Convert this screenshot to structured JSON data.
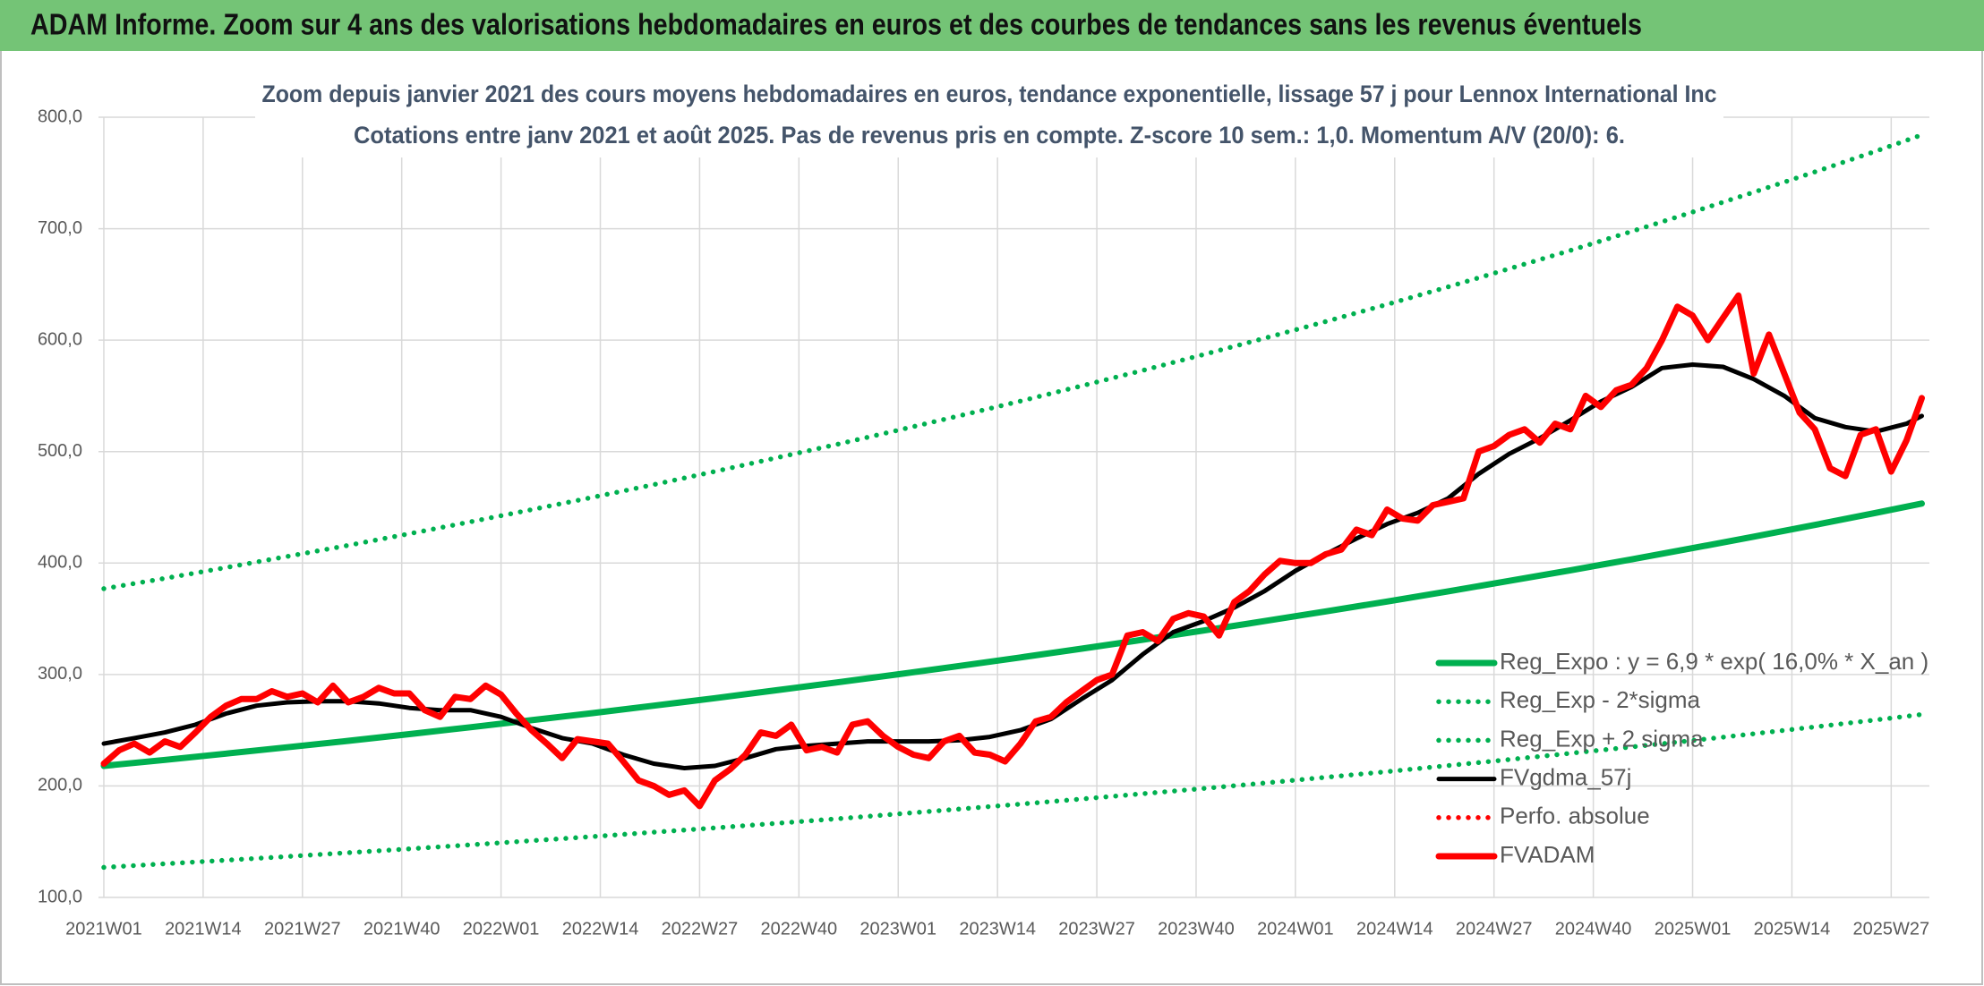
{
  "banner": "ADAM Informe. Zoom sur 4 ans des valorisations hebdomadaires en euros et des courbes de tendances sans les revenus éventuels",
  "chart_data": {
    "type": "line",
    "title": "Zoom depuis janvier 2021 des cours moyens hebdomadaires en euros, tendance exponentielle, lissage 57 j pour Lennox International Inc",
    "subtitle": "Cotations entre janv 2021 et août 2025. Pas de revenus pris en compte. Z-score 10 sem.: 1,0. Momentum A/V (20/0): 6.",
    "xlim": [
      -0.7,
      239
    ],
    "xticks": [
      {
        "value": 0,
        "label": "2021W01"
      },
      {
        "value": 13,
        "label": "2021W14"
      },
      {
        "value": 26,
        "label": "2021W27"
      },
      {
        "value": 39,
        "label": "2021W40"
      },
      {
        "value": 52,
        "label": "2022W01"
      },
      {
        "value": 65,
        "label": "2022W14"
      },
      {
        "value": 78,
        "label": "2022W27"
      },
      {
        "value": 91,
        "label": "2022W40"
      },
      {
        "value": 104,
        "label": "2023W01"
      },
      {
        "value": 117,
        "label": "2023W14"
      },
      {
        "value": 130,
        "label": "2023W27"
      },
      {
        "value": 143,
        "label": "2023W40"
      },
      {
        "value": 156,
        "label": "2024W01"
      },
      {
        "value": 169,
        "label": "2024W14"
      },
      {
        "value": 182,
        "label": "2024W27"
      },
      {
        "value": 195,
        "label": "2024W40"
      },
      {
        "value": 208,
        "label": "2025W01"
      },
      {
        "value": 221,
        "label": "2025W14"
      },
      {
        "value": 234,
        "label": "2025W27"
      }
    ],
    "ylim": [
      100,
      800
    ],
    "yticks": [
      {
        "value": 100,
        "label": "100,0"
      },
      {
        "value": 200,
        "label": "200,0"
      },
      {
        "value": 300,
        "label": "300,0"
      },
      {
        "value": 400,
        "label": "400,0"
      },
      {
        "value": 500,
        "label": "500,0"
      },
      {
        "value": 600,
        "label": "600,0"
      },
      {
        "value": 700,
        "label": "700,0"
      },
      {
        "value": 800,
        "label": "800,0"
      }
    ],
    "grid": true,
    "legend": "lower-right",
    "series": [
      {
        "name": "Reg_Expo : y = 6,9 * exp( 16,0% *  X_an )",
        "color": "#00b050",
        "style": "solid",
        "x": [
          0,
          8,
          16,
          24,
          32,
          40,
          48,
          56,
          64,
          72,
          80,
          88,
          96,
          104,
          112,
          120,
          128,
          136,
          144,
          152,
          160,
          168,
          176,
          184,
          192,
          200,
          208,
          216,
          224,
          232,
          238
        ],
        "values": [
          218.0,
          223.4,
          229.0,
          234.7,
          240.5,
          246.5,
          252.7,
          259.0,
          265.4,
          272.0,
          278.8,
          285.8,
          292.9,
          300.2,
          307.7,
          315.3,
          323.2,
          331.2,
          339.5,
          348.0,
          356.6,
          365.5,
          374.6,
          384.0,
          393.5,
          403.3,
          413.4,
          423.7,
          434.2,
          445.0,
          453.4
        ]
      },
      {
        "name": "Reg_Exp - 2*sigma",
        "color": "#00b050",
        "style": "dotted",
        "x": [
          0,
          8,
          16,
          24,
          32,
          40,
          48,
          56,
          64,
          72,
          80,
          88,
          96,
          104,
          112,
          120,
          128,
          136,
          144,
          152,
          160,
          168,
          176,
          184,
          192,
          200,
          208,
          216,
          224,
          232,
          238
        ],
        "values": [
          127.0,
          130.2,
          133.4,
          136.7,
          140.1,
          143.6,
          147.2,
          150.9,
          154.6,
          158.5,
          162.4,
          166.5,
          170.6,
          174.9,
          179.3,
          183.7,
          188.3,
          193.0,
          197.8,
          202.7,
          207.8,
          212.9,
          218.3,
          223.7,
          229.3,
          235.0,
          240.8,
          246.8,
          253.0,
          259.3,
          264.2
        ]
      },
      {
        "name": "Reg_Exp + 2 sigma",
        "color": "#00b050",
        "style": "dotted",
        "x": [
          0,
          8,
          16,
          24,
          32,
          40,
          48,
          56,
          64,
          72,
          80,
          88,
          96,
          104,
          112,
          120,
          128,
          136,
          144,
          152,
          160,
          168,
          176,
          184,
          192,
          200,
          208,
          216,
          224,
          232,
          238
        ],
        "values": [
          377.0,
          386.3,
          396.0,
          405.9,
          415.9,
          426.3,
          437.0,
          447.9,
          459.0,
          470.4,
          482.2,
          494.3,
          506.5,
          519.2,
          532.1,
          545.3,
          558.9,
          572.8,
          587.1,
          601.8,
          616.7,
          632.1,
          647.8,
          664.1,
          680.5,
          697.5,
          714.9,
          732.7,
          750.9,
          769.6,
          784.1
        ]
      },
      {
        "name": "FVgdma_57j",
        "color": "#000000",
        "style": "solid",
        "x": [
          0,
          4,
          8,
          12,
          16,
          20,
          24,
          28,
          32,
          36,
          40,
          44,
          48,
          52,
          56,
          60,
          64,
          68,
          72,
          76,
          80,
          84,
          88,
          92,
          96,
          100,
          104,
          108,
          112,
          116,
          120,
          124,
          128,
          132,
          136,
          140,
          144,
          148,
          152,
          156,
          160,
          164,
          168,
          172,
          176,
          180,
          184,
          188,
          192,
          196,
          200,
          204,
          208,
          212,
          216,
          220,
          224,
          228,
          232,
          236,
          238
        ],
        "values": [
          238,
          243,
          248,
          255,
          265,
          272,
          275,
          276,
          276,
          274,
          270,
          268,
          268,
          262,
          252,
          243,
          238,
          228,
          220,
          216,
          218,
          225,
          233,
          236,
          238,
          240,
          240,
          240,
          241,
          244,
          250,
          260,
          278,
          295,
          318,
          338,
          348,
          360,
          375,
          393,
          408,
          422,
          435,
          445,
          458,
          480,
          498,
          512,
          528,
          545,
          558,
          575,
          578,
          576,
          565,
          550,
          530,
          522,
          518,
          525,
          532
        ]
      },
      {
        "name": "Perfo. absolue",
        "color": "#ff0000",
        "style": "dotted",
        "x": [],
        "values": []
      },
      {
        "name": "FVADAM",
        "color": "#ff0000",
        "style": "solid",
        "x": [
          0,
          2,
          4,
          6,
          8,
          10,
          12,
          14,
          16,
          18,
          20,
          22,
          24,
          26,
          28,
          30,
          32,
          34,
          36,
          38,
          40,
          42,
          44,
          46,
          48,
          50,
          52,
          54,
          56,
          58,
          60,
          62,
          64,
          66,
          68,
          70,
          72,
          74,
          76,
          78,
          80,
          82,
          84,
          86,
          88,
          90,
          92,
          94,
          96,
          98,
          100,
          102,
          104,
          106,
          108,
          110,
          112,
          114,
          116,
          118,
          120,
          122,
          124,
          126,
          128,
          130,
          132,
          134,
          136,
          138,
          140,
          142,
          144,
          146,
          148,
          150,
          152,
          154,
          156,
          158,
          160,
          162,
          164,
          166,
          168,
          170,
          172,
          174,
          176,
          178,
          180,
          182,
          184,
          186,
          188,
          190,
          192,
          194,
          196,
          198,
          200,
          202,
          204,
          206,
          208,
          210,
          212,
          214,
          216,
          218,
          220,
          222,
          224,
          226,
          228,
          230,
          232,
          234,
          236,
          238
        ],
        "values": [
          220,
          232,
          238,
          230,
          240,
          235,
          248,
          262,
          272,
          278,
          278,
          285,
          280,
          283,
          275,
          290,
          275,
          280,
          288,
          283,
          283,
          268,
          262,
          280,
          278,
          290,
          282,
          265,
          250,
          238,
          225,
          242,
          240,
          238,
          222,
          205,
          200,
          192,
          196,
          182,
          205,
          215,
          228,
          248,
          245,
          255,
          232,
          235,
          230,
          255,
          258,
          245,
          235,
          228,
          225,
          240,
          245,
          230,
          228,
          222,
          238,
          258,
          262,
          275,
          285,
          295,
          300,
          335,
          338,
          330,
          350,
          355,
          352,
          335,
          365,
          375,
          390,
          402,
          400,
          400,
          408,
          412,
          430,
          425,
          448,
          440,
          438,
          452,
          455,
          458,
          500,
          505,
          515,
          520,
          508,
          525,
          520,
          550,
          540,
          555,
          560,
          575,
          600,
          630,
          622,
          600,
          620,
          640,
          570,
          605,
          570,
          535,
          520,
          485,
          478,
          515,
          520,
          482,
          510,
          548
        ]
      }
    ]
  }
}
